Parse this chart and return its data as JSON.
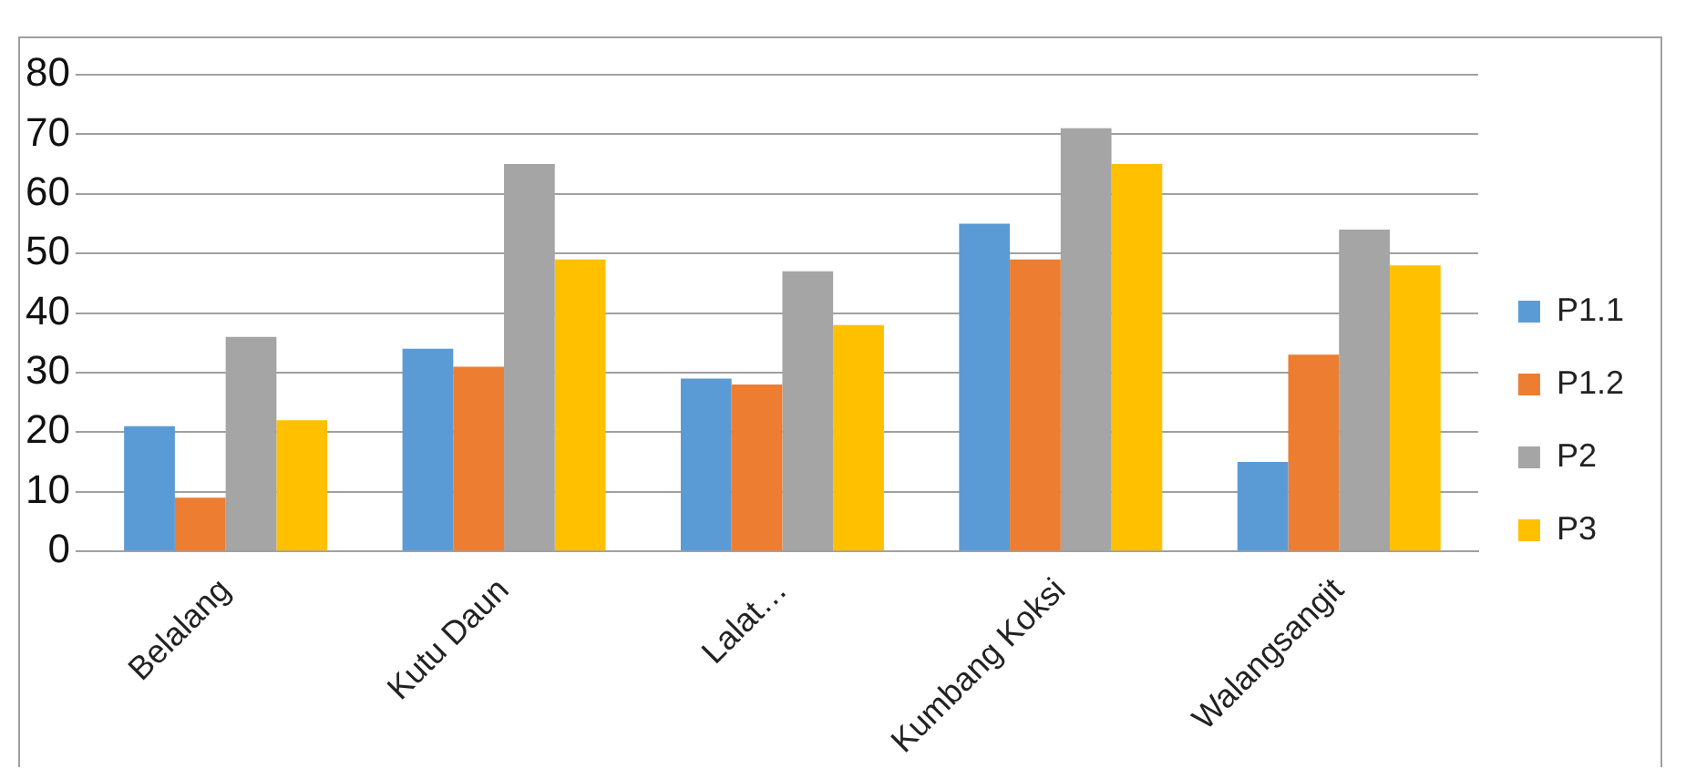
{
  "chart_data": {
    "type": "bar",
    "categories": [
      "Belalang",
      "Kutu Daun",
      "Lalat…",
      "Kumbang Koksi",
      "Walangsangit"
    ],
    "series": [
      {
        "name": "P1.1",
        "color": "#5b9bd5",
        "values": [
          21,
          34,
          29,
          55,
          15
        ]
      },
      {
        "name": "P1.2",
        "color": "#ed7d31",
        "values": [
          9,
          31,
          28,
          49,
          33
        ]
      },
      {
        "name": "P2",
        "color": "#a5a5a5",
        "values": [
          36,
          65,
          47,
          71,
          54
        ]
      },
      {
        "name": "P3",
        "color": "#ffc000",
        "values": [
          22,
          49,
          38,
          65,
          48
        ]
      }
    ],
    "ylim": [
      0,
      80
    ],
    "yticks": [
      0,
      10,
      20,
      30,
      40,
      50,
      60,
      70,
      80
    ],
    "grid": "y",
    "legend": "right"
  }
}
